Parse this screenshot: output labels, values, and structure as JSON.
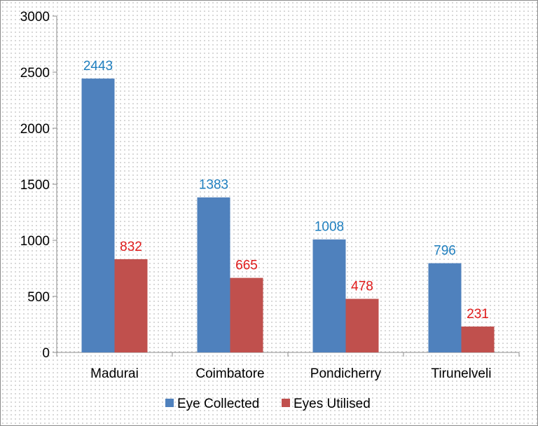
{
  "chart_data": {
    "type": "bar",
    "title": "",
    "xlabel": "",
    "ylabel": "",
    "categories": [
      "Madurai",
      "Coimbatore",
      "Pondicherry",
      "Tirunelveli"
    ],
    "series": [
      {
        "name": "Eye Collected",
        "color": "#4f81bd",
        "label_color": "#1f7fbf",
        "values": [
          2443,
          1383,
          1008,
          796
        ]
      },
      {
        "name": "Eyes Utilised",
        "color": "#c0504d",
        "label_color": "#e01b1b",
        "values": [
          832,
          665,
          478,
          231
        ]
      }
    ],
    "ylim": [
      0,
      3000
    ],
    "yticks": [
      0,
      500,
      1000,
      1500,
      2000,
      2500,
      3000
    ],
    "grid": false,
    "legend": "bottom"
  }
}
